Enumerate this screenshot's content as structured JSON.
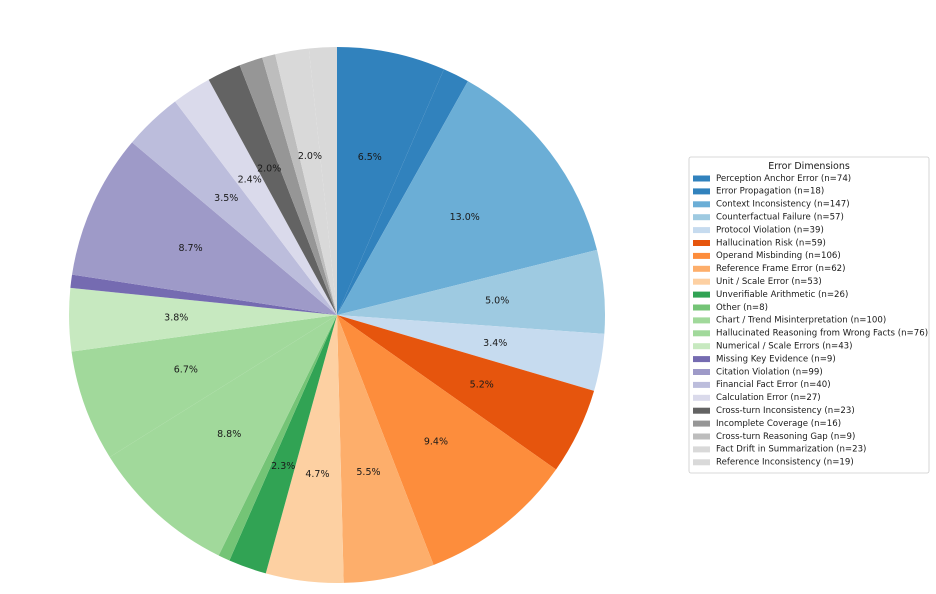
{
  "chart_data": {
    "type": "pie",
    "title": "",
    "legend_title": "Error Dimensions",
    "legend_position": "right",
    "start_angle_deg": 90,
    "direction": "clockwise",
    "slices": [
      {
        "label": "Perception Anchor Error (n=74)",
        "value": 74,
        "color": "#3182bd",
        "pct_label": "6.5%"
      },
      {
        "label": "Error Propagation (n=18)",
        "value": 18,
        "color": "#3182bd",
        "pct_label": ""
      },
      {
        "label": "Context Inconsistency (n=147)",
        "value": 147,
        "color": "#6baed6",
        "pct_label": "13.0%"
      },
      {
        "label": "Counterfactual Failure (n=57)",
        "value": 57,
        "color": "#9ecae1",
        "pct_label": "5.0%"
      },
      {
        "label": "Protocol Violation (n=39)",
        "value": 39,
        "color": "#c6dbef",
        "pct_label": "3.4%"
      },
      {
        "label": "Hallucination Risk (n=59)",
        "value": 59,
        "color": "#e6550d",
        "pct_label": "5.2%"
      },
      {
        "label": "Operand Misbinding (n=106)",
        "value": 106,
        "color": "#fd8d3c",
        "pct_label": "9.4%"
      },
      {
        "label": "Reference Frame Error (n=62)",
        "value": 62,
        "color": "#fdae6b",
        "pct_label": "5.5%"
      },
      {
        "label": "Unit / Scale Error (n=53)",
        "value": 53,
        "color": "#fdd0a2",
        "pct_label": "4.7%"
      },
      {
        "label": "Unverifiable Arithmetic (n=26)",
        "value": 26,
        "color": "#31a354",
        "pct_label": "2.3%"
      },
      {
        "label": "Other (n=8)",
        "value": 8,
        "color": "#74c476",
        "pct_label": ""
      },
      {
        "label": "Chart / Trend Misinterpretation (n=100)",
        "value": 100,
        "color": "#a1d99b",
        "pct_label": "8.8%"
      },
      {
        "label": "Hallucinated Reasoning from Wrong Facts (n=76)",
        "value": 76,
        "color": "#a1d99b",
        "pct_label": "6.7%"
      },
      {
        "label": "Numerical / Scale Errors (n=43)",
        "value": 43,
        "color": "#c7e9c0",
        "pct_label": "3.8%"
      },
      {
        "label": "Missing Key Evidence (n=9)",
        "value": 9,
        "color": "#756bb1",
        "pct_label": ""
      },
      {
        "label": "Citation Violation (n=99)",
        "value": 99,
        "color": "#9e9ac8",
        "pct_label": "8.7%"
      },
      {
        "label": "Financial Fact Error (n=40)",
        "value": 40,
        "color": "#bcbddc",
        "pct_label": "3.5%"
      },
      {
        "label": "Calculation Error (n=27)",
        "value": 27,
        "color": "#dadaeb",
        "pct_label": "2.4%"
      },
      {
        "label": "Cross-turn Inconsistency (n=23)",
        "value": 23,
        "color": "#636363",
        "pct_label": "2.0%"
      },
      {
        "label": "Incomplete Coverage (n=16)",
        "value": 16,
        "color": "#969696",
        "pct_label": ""
      },
      {
        "label": "Cross-turn Reasoning Gap (n=9)",
        "value": 9,
        "color": "#bdbdbd",
        "pct_label": ""
      },
      {
        "label": "Fact Drift in Summarization (n=23)",
        "value": 23,
        "color": "#d9d9d9",
        "pct_label": "2.0%"
      },
      {
        "label": "Reference Inconsistency (n=19)",
        "value": 19,
        "color": "#d9d9d9",
        "pct_label": ""
      }
    ]
  }
}
